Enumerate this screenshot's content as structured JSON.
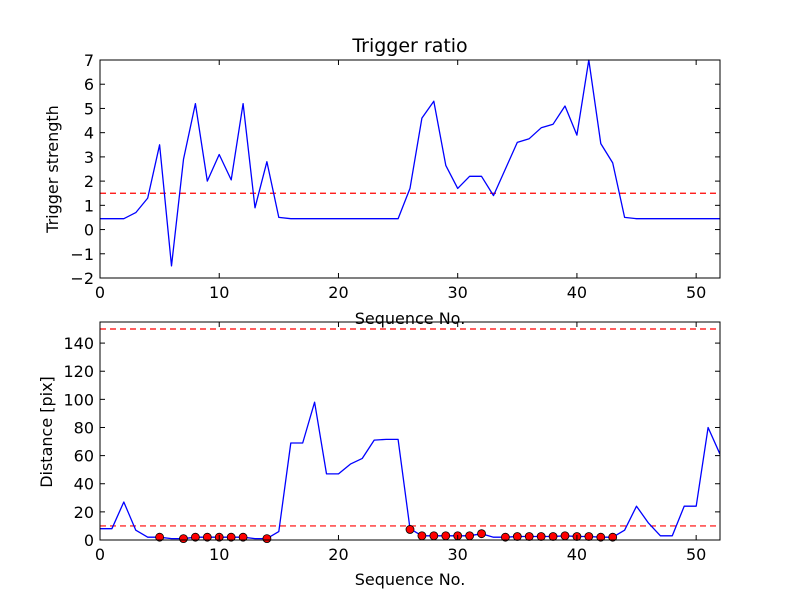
{
  "chart_data": [
    {
      "type": "line",
      "title": "Trigger ratio",
      "xlabel": "Sequence No.",
      "ylabel": "Trigger strength",
      "xlim": [
        0,
        52
      ],
      "ylim": [
        -2,
        7
      ],
      "xticks": [
        0,
        10,
        20,
        30,
        40,
        50
      ],
      "yticks": [
        -2,
        -1,
        0,
        1,
        2,
        3,
        4,
        5,
        6,
        7
      ],
      "grid": false,
      "series": [
        {
          "kind": "line",
          "color": "#0000ff",
          "x": [
            0,
            1,
            2,
            3,
            4,
            5,
            6,
            7,
            8,
            9,
            10,
            11,
            12,
            13,
            14,
            15,
            16,
            17,
            18,
            19,
            20,
            21,
            22,
            23,
            24,
            25,
            26,
            27,
            28,
            29,
            30,
            31,
            32,
            33,
            34,
            35,
            36,
            37,
            38,
            39,
            40,
            41,
            42,
            43,
            44,
            45,
            46,
            47,
            48,
            49,
            50,
            51,
            52
          ],
          "y": [
            0.45,
            0.45,
            0.45,
            0.7,
            1.3,
            3.5,
            -1.5,
            2.9,
            5.2,
            2.0,
            3.1,
            2.05,
            5.2,
            0.9,
            2.8,
            0.5,
            0.45,
            0.45,
            0.45,
            0.45,
            0.45,
            0.45,
            0.45,
            0.45,
            0.45,
            0.45,
            1.7,
            4.6,
            5.3,
            2.65,
            1.7,
            2.2,
            2.2,
            1.4,
            2.5,
            3.6,
            3.75,
            4.2,
            4.35,
            5.1,
            3.9,
            7.0,
            3.55,
            2.75,
            0.5,
            0.45,
            0.45,
            0.45,
            0.45,
            0.45,
            0.45,
            0.45,
            0.45
          ]
        }
      ],
      "reference_lines": [
        {
          "orientation": "horizontal",
          "y": 1.5,
          "color": "#ff0000",
          "style": "dashed"
        }
      ]
    },
    {
      "type": "line",
      "title": "",
      "xlabel": "Sequence No.",
      "ylabel": "Distance [pix]",
      "xlim": [
        0,
        52
      ],
      "ylim": [
        0,
        155
      ],
      "xticks": [
        0,
        10,
        20,
        30,
        40,
        50
      ],
      "yticks": [
        0,
        20,
        40,
        60,
        80,
        100,
        120,
        140
      ],
      "grid": false,
      "series": [
        {
          "kind": "line",
          "color": "#0000ff",
          "x": [
            0,
            1,
            2,
            3,
            4,
            5,
            6,
            7,
            8,
            9,
            10,
            11,
            12,
            13,
            14,
            15,
            16,
            17,
            18,
            19,
            20,
            21,
            22,
            23,
            24,
            25,
            26,
            27,
            28,
            29,
            30,
            31,
            32,
            33,
            34,
            35,
            36,
            37,
            38,
            39,
            40,
            41,
            42,
            43,
            44,
            45,
            46,
            47,
            48,
            49,
            50,
            51,
            52
          ],
          "y": [
            8,
            8,
            27,
            7,
            2,
            2,
            1,
            1,
            2,
            2,
            2,
            2,
            2,
            1,
            1,
            6,
            69,
            69,
            98,
            47,
            47,
            54,
            58,
            71,
            71.5,
            71.5,
            8,
            3,
            3,
            3,
            3,
            3,
            4.5,
            2,
            2,
            2.5,
            2.5,
            2.5,
            2.5,
            3,
            2.5,
            2.5,
            2,
            2,
            7,
            24,
            12,
            3,
            3,
            24,
            24,
            80,
            61
          ]
        },
        {
          "kind": "scatter",
          "color": "#ff0000",
          "x": [
            5,
            7,
            8,
            9,
            10,
            11,
            12,
            14,
            26,
            27,
            28,
            29,
            30,
            31,
            32,
            34,
            35,
            36,
            37,
            38,
            39,
            40,
            41,
            42,
            43
          ],
          "y": [
            2,
            1,
            2,
            2,
            2,
            2,
            2,
            1,
            7.5,
            3,
            3,
            3,
            3,
            3,
            4.5,
            2,
            2.5,
            2.5,
            2.5,
            2.5,
            3,
            2.5,
            2.5,
            2,
            2
          ]
        }
      ],
      "reference_lines": [
        {
          "orientation": "horizontal",
          "y": 10,
          "color": "#ff0000",
          "style": "dashed"
        },
        {
          "orientation": "horizontal",
          "y": 150,
          "color": "#ff0000",
          "style": "dashed"
        }
      ]
    }
  ]
}
